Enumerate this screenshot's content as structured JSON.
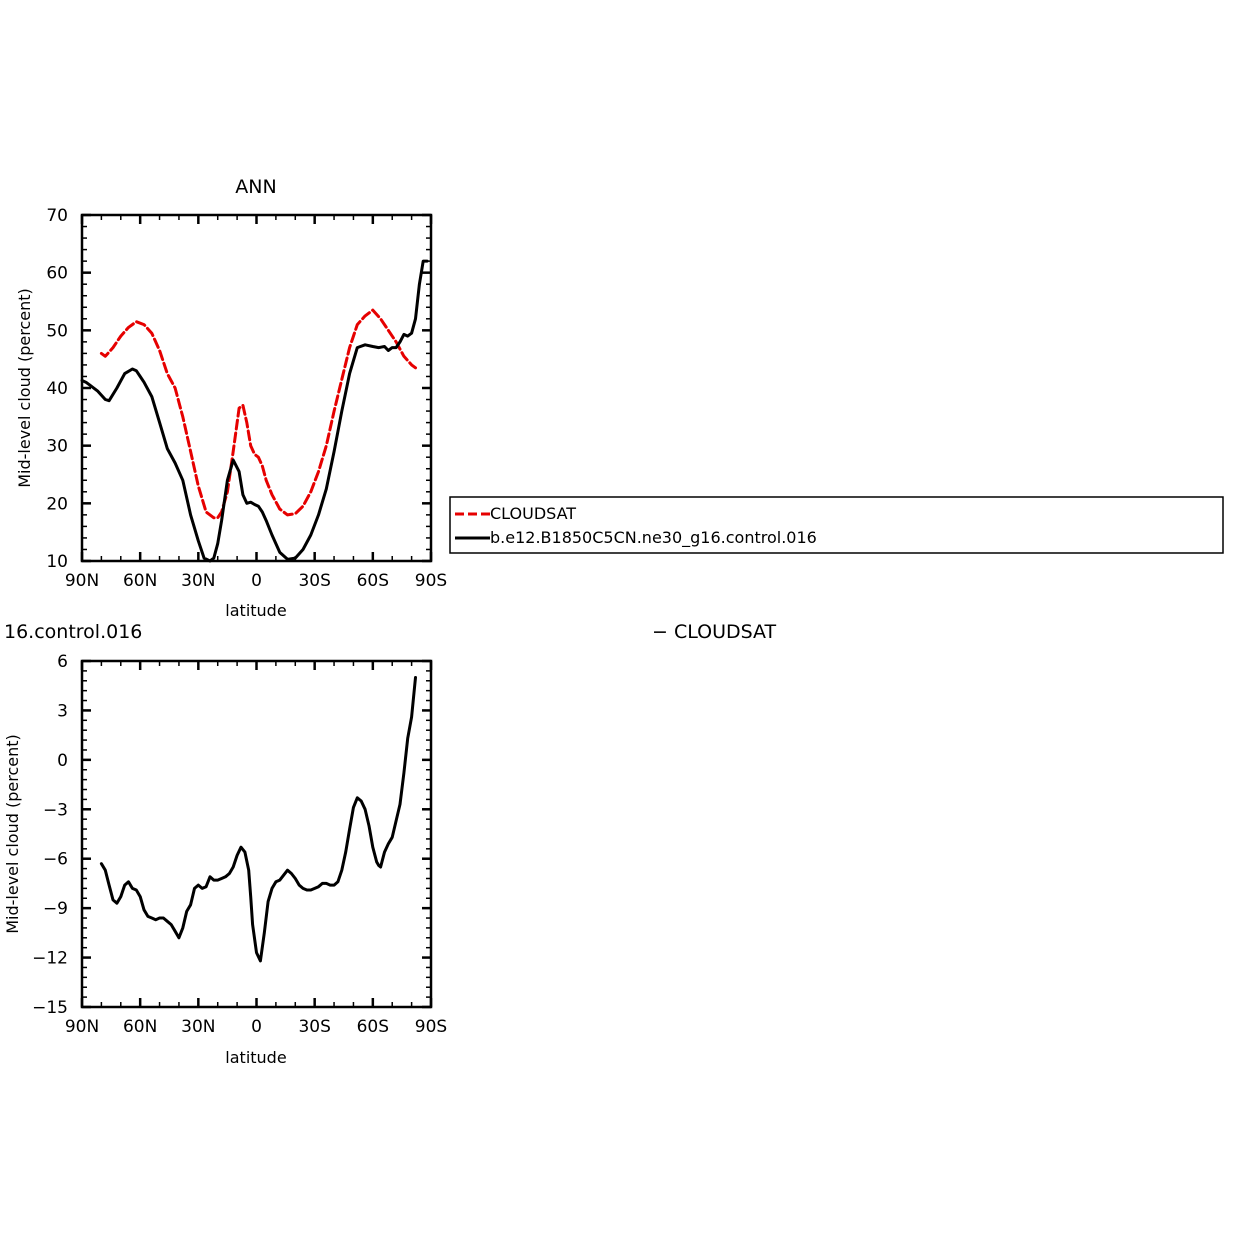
{
  "chart_data": [
    {
      "type": "line",
      "title": "ANN",
      "xlabel": "latitude",
      "ylabel": "Mid-level cloud (percent)",
      "xlim": [
        90,
        -90
      ],
      "ylim": [
        10,
        70
      ],
      "x_ticks": [
        90,
        60,
        30,
        0,
        -30,
        -60,
        -90
      ],
      "x_tick_labels": [
        "90N",
        "60N",
        "30N",
        "0",
        "30S",
        "60S",
        "90S"
      ],
      "y_ticks": [
        10,
        20,
        30,
        40,
        50,
        60,
        70
      ],
      "y_tick_labels": [
        "10",
        "20",
        "30",
        "40",
        "50",
        "60",
        "70"
      ],
      "legend_position": "right",
      "series": [
        {
          "name": "CLOUDSAT",
          "color": "#e60000",
          "dash": "dashed",
          "x": [
            80,
            78,
            74,
            70,
            66,
            62,
            58,
            54,
            50,
            46,
            42,
            38,
            34,
            30,
            26,
            22,
            20,
            18,
            15,
            12,
            9,
            7,
            5,
            3,
            1,
            -1,
            -3,
            -5,
            -8,
            -12,
            -16,
            -20,
            -24,
            -28,
            -32,
            -36,
            -40,
            -44,
            -48,
            -52,
            -56,
            -60,
            -64,
            -68,
            -72,
            -76,
            -80,
            -82
          ],
          "values": [
            46,
            45.5,
            47,
            49,
            50.5,
            51.5,
            51,
            49.5,
            46.5,
            42.5,
            40,
            35,
            29,
            23,
            18.5,
            17.5,
            17.5,
            18.5,
            22,
            29,
            36.5,
            37,
            34,
            30,
            28.5,
            28,
            26.5,
            24,
            21.5,
            19,
            18,
            18.2,
            19.5,
            22,
            25.5,
            30,
            36,
            41.5,
            47,
            51,
            52.5,
            53.5,
            52,
            50,
            48,
            45.5,
            44,
            43.5
          ]
        },
        {
          "name": "b.e12.B1850C5CN.ne30_g16.control.016",
          "color": "#000000",
          "dash": "solid",
          "x": [
            90,
            88,
            86,
            82,
            78,
            76,
            72,
            68,
            64,
            62,
            60,
            58,
            54,
            50,
            46,
            42,
            38,
            34,
            30,
            27,
            24,
            22,
            20,
            18,
            15,
            12,
            9,
            7,
            5,
            3,
            1,
            -1,
            -3,
            -5,
            -8,
            -12,
            -16,
            -20,
            -24,
            -28,
            -32,
            -36,
            -40,
            -44,
            -48,
            -52,
            -56,
            -60,
            -63,
            -66,
            -68,
            -70,
            -72,
            -74,
            -76,
            -78,
            -80,
            -82,
            -84,
            -86,
            -88
          ],
          "values": [
            41.3,
            41,
            40.5,
            39.5,
            38,
            37.8,
            40,
            42.5,
            43.3,
            43,
            42,
            41,
            38.5,
            34,
            29.5,
            27,
            24,
            18,
            13.5,
            10.5,
            10,
            10.5,
            13,
            17,
            24,
            27.5,
            25.5,
            21.5,
            20,
            20.2,
            19.8,
            19.5,
            18.5,
            17,
            14.5,
            11.5,
            10.3,
            10.5,
            12,
            14.5,
            18,
            22.5,
            29,
            36,
            42.5,
            47,
            47.5,
            47.2,
            47,
            47.2,
            46.5,
            47,
            47,
            48,
            49.3,
            49,
            49.5,
            52,
            58,
            62,
            62
          ]
        }
      ]
    },
    {
      "type": "line",
      "title": "16.control.016 − CLOUDSAT",
      "title_parts": [
        "16.control.016",
        "− CLOUDSAT"
      ],
      "xlabel": "latitude",
      "ylabel": "Mid-level cloud (percent)",
      "xlim": [
        90,
        -90
      ],
      "ylim": [
        -15,
        6
      ],
      "x_ticks": [
        90,
        60,
        30,
        0,
        -30,
        -60,
        -90
      ],
      "x_tick_labels": [
        "90N",
        "60N",
        "30N",
        "0",
        "30S",
        "60S",
        "90S"
      ],
      "y_ticks": [
        6,
        3,
        0,
        -3,
        -6,
        -9,
        -12,
        -15
      ],
      "y_tick_labels": [
        "6",
        "3",
        "0",
        "−3",
        "−6",
        "−9",
        "−12",
        "−15"
      ],
      "series": [
        {
          "color": "#000000",
          "x": [
            80,
            78,
            76,
            74,
            72,
            70,
            68,
            66,
            64,
            62,
            60,
            58,
            56,
            54,
            52,
            50,
            48,
            46,
            44,
            42,
            40,
            38,
            36,
            34,
            32,
            30,
            28,
            26,
            24,
            22,
            20,
            18,
            16,
            14,
            12,
            10,
            8,
            6,
            4,
            3,
            2,
            0,
            -2,
            -4,
            -6,
            -8,
            -10,
            -12,
            -14,
            -16,
            -18,
            -20,
            -22,
            -24,
            -26,
            -28,
            -30,
            -32,
            -34,
            -36,
            -38,
            -40,
            -42,
            -44,
            -46,
            -48,
            -50,
            -52,
            -54,
            -56,
            -58,
            -60,
            -62,
            -63,
            -64,
            -66,
            -68,
            -70,
            -72,
            -74,
            -76,
            -78,
            -80,
            -82
          ],
          "values": [
            -6.3,
            -6.7,
            -7.6,
            -8.5,
            -8.7,
            -8.3,
            -7.6,
            -7.4,
            -7.8,
            -7.9,
            -8.3,
            -9.1,
            -9.5,
            -9.6,
            -9.7,
            -9.6,
            -9.6,
            -9.8,
            -10.0,
            -10.4,
            -10.8,
            -10.2,
            -9.2,
            -8.8,
            -7.8,
            -7.6,
            -7.8,
            -7.7,
            -7.1,
            -7.3,
            -7.3,
            -7.2,
            -7.1,
            -6.9,
            -6.5,
            -5.8,
            -5.3,
            -5.6,
            -6.7,
            -8.3,
            -10.0,
            -11.7,
            -12.2,
            -10.5,
            -8.6,
            -7.8,
            -7.4,
            -7.3,
            -7.0,
            -6.7,
            -6.9,
            -7.2,
            -7.6,
            -7.8,
            -7.9,
            -7.9,
            -7.8,
            -7.7,
            -7.5,
            -7.5,
            -7.6,
            -7.6,
            -7.4,
            -6.7,
            -5.6,
            -4.2,
            -2.9,
            -2.3,
            -2.5,
            -3.0,
            -4.0,
            -5.3,
            -6.2,
            -6.4,
            -6.5,
            -5.6,
            -5.1,
            -4.7,
            -3.7,
            -2.7,
            -0.8,
            1.3,
            2.6,
            5.0
          ]
        }
      ]
    }
  ]
}
